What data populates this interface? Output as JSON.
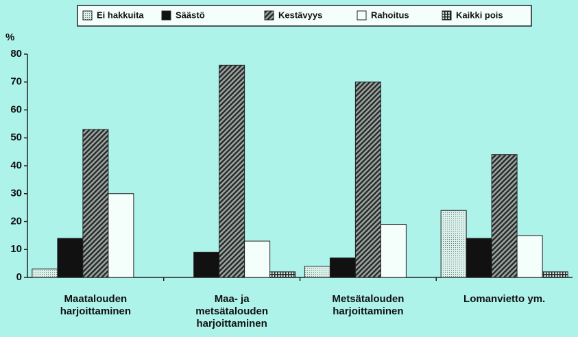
{
  "chart_data": {
    "type": "bar",
    "y_label": "%",
    "categories": [
      "Maatalouden\nharjoittaminen",
      "Maa- ja\nmetsätalouden\nharjoittaminen",
      "Metsätalouden\nharjoittaminen",
      "Lomanvietto ym."
    ],
    "series": [
      {
        "name": "Ei hakkuita",
        "color": "#cfe9e2",
        "pattern": "dots",
        "values": [
          3,
          0,
          4,
          24
        ]
      },
      {
        "name": "Säästö",
        "color": "#111111",
        "pattern": "solid",
        "values": [
          14,
          9,
          7,
          14
        ]
      },
      {
        "name": "Kestävyys",
        "color": "#3a3a3a",
        "pattern": "hatch",
        "values": [
          53,
          76,
          70,
          44
        ]
      },
      {
        "name": "Rahoitus",
        "color": "#f4fffb",
        "pattern": "solid",
        "values": [
          30,
          13,
          19,
          15
        ]
      },
      {
        "name": "Kaikki pois",
        "color": "#222222",
        "pattern": "grid",
        "values": [
          0,
          2,
          0,
          2
        ]
      }
    ],
    "ylim": [
      0,
      80
    ],
    "yticks": [
      0,
      10,
      20,
      30,
      40,
      50,
      60,
      70,
      80
    ],
    "legend": "top"
  }
}
